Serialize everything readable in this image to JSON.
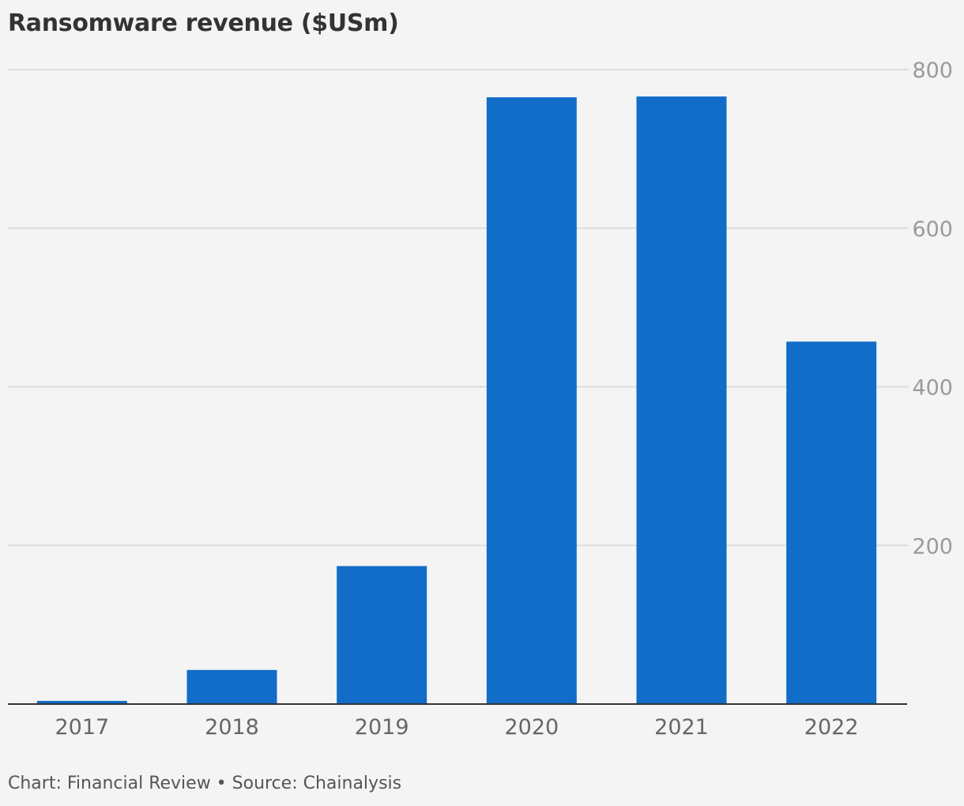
{
  "chart_data": {
    "type": "bar",
    "title": "Ransomware revenue ($USm)",
    "categories": [
      "2017",
      "2018",
      "2019",
      "2020",
      "2021",
      "2022"
    ],
    "values": [
      4,
      43,
      174,
      765,
      766,
      457
    ],
    "ylim": [
      0,
      800
    ],
    "yticks": [
      200,
      400,
      600,
      800
    ],
    "xlabel": "",
    "ylabel": "",
    "grid": true,
    "y_axis_side": "right",
    "bar_color": "#116dc7"
  },
  "footer": {
    "credit": "Chart: Financial Review • Source: Chainalysis"
  },
  "colors": {
    "background": "#f4f4f4",
    "gridline": "#dddddd",
    "baseline": "#333333",
    "title": "#333333"
  }
}
